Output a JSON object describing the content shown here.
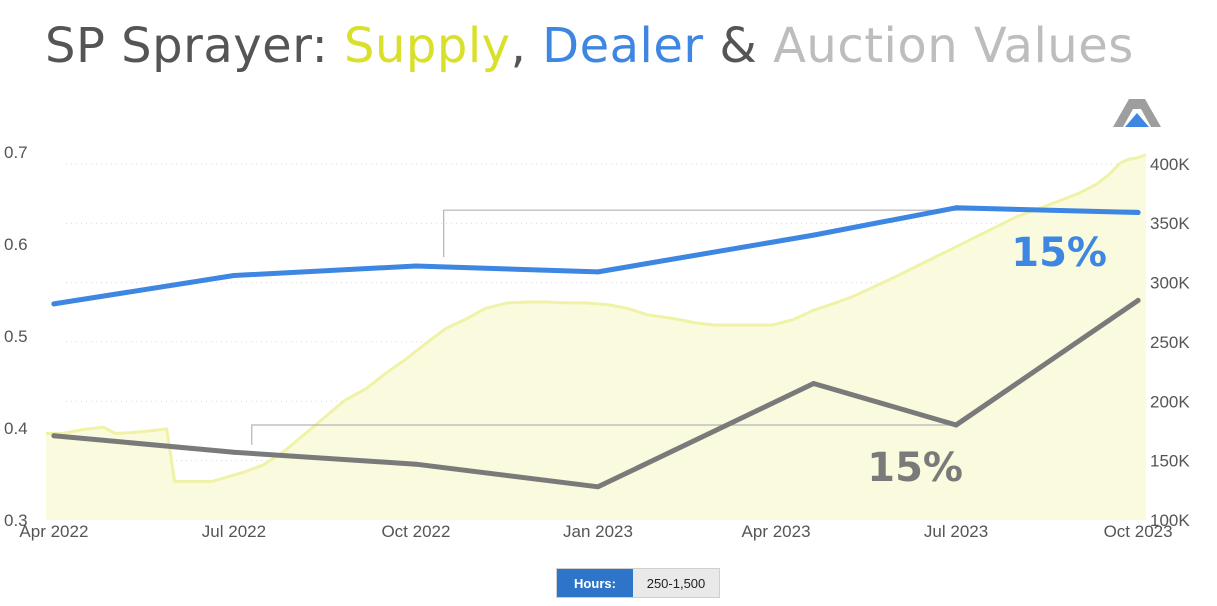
{
  "title": {
    "prefix": "SP Sprayer: ",
    "supply": "Supply",
    "sep1": ", ",
    "dealer": "Dealer",
    "sep2": " & ",
    "auction": "Auction Values"
  },
  "colors": {
    "title_text": "#555555",
    "supply": "#d9e02a",
    "supply_fill": "#fafade",
    "supply_line": "#f0f2a8",
    "dealer": "#3d86e2",
    "auction": "#7a7a7a",
    "auction_title": "#bdbdbd",
    "bracket": "#b4b4b4",
    "grid": "#d9d9d9"
  },
  "filter": {
    "label": "Hours:",
    "value": "250-1,500"
  },
  "logo": {
    "icon": "mountain-logo-icon"
  },
  "chart_data": {
    "type": "line",
    "x_type": "date",
    "xlim": [
      "2022-03-28",
      "2023-10-05"
    ],
    "x_ticks": [
      {
        "date": "2022-04-01",
        "label": "Apr 2022"
      },
      {
        "date": "2022-07-01",
        "label": "Jul 2022"
      },
      {
        "date": "2022-10-01",
        "label": "Oct 2022"
      },
      {
        "date": "2023-01-01",
        "label": "Jan 2023"
      },
      {
        "date": "2023-04-01",
        "label": "Apr 2023"
      },
      {
        "date": "2023-07-01",
        "label": "Jul 2023"
      },
      {
        "date": "2023-10-01",
        "label": "Oct 2023"
      }
    ],
    "y_left": {
      "ylim": [
        0.3,
        0.7
      ],
      "ticks": [
        0.3,
        0.4,
        0.5,
        0.6,
        0.7
      ],
      "labels": [
        "0.3",
        "0.4",
        "0.5",
        "0.6",
        "0.7"
      ]
    },
    "y_right": {
      "ylim": [
        100000,
        410000
      ],
      "ticks": [
        100000,
        150000,
        200000,
        250000,
        300000,
        350000,
        400000
      ],
      "labels": [
        "100K",
        "150K",
        "200K",
        "250K",
        "300K",
        "350K",
        "400K"
      ]
    },
    "grid": "dotted horizontal",
    "series": [
      {
        "key": "supply",
        "axis": "left",
        "style": "area",
        "x": [
          "2022-03-28",
          "2022-04-05",
          "2022-04-15",
          "2022-04-26",
          "2022-05-02",
          "2022-05-10",
          "2022-05-20",
          "2022-05-28",
          "2022-06-01",
          "2022-06-07",
          "2022-06-20",
          "2022-06-28",
          "2022-07-06",
          "2022-07-16",
          "2022-07-26",
          "2022-08-05",
          "2022-08-16",
          "2022-08-26",
          "2022-09-06",
          "2022-09-16",
          "2022-09-26",
          "2022-10-06",
          "2022-10-16",
          "2022-10-26",
          "2022-11-05",
          "2022-11-16",
          "2022-11-26",
          "2022-12-06",
          "2022-12-16",
          "2022-12-26",
          "2023-01-06",
          "2023-01-16",
          "2023-01-26",
          "2023-02-08",
          "2023-02-20",
          "2023-03-01",
          "2023-03-15",
          "2023-03-30",
          "2023-04-10",
          "2023-04-20",
          "2023-05-01",
          "2023-05-10",
          "2023-05-20",
          "2023-06-01",
          "2023-06-15",
          "2023-07-01",
          "2023-07-15",
          "2023-08-01",
          "2023-08-15",
          "2023-09-01",
          "2023-09-10",
          "2023-09-16",
          "2023-09-22",
          "2023-09-26",
          "2023-10-01",
          "2023-10-05"
        ],
        "values": [
          0.394,
          0.394,
          0.398,
          0.401,
          0.394,
          0.395,
          0.397,
          0.399,
          0.342,
          0.342,
          0.342,
          0.347,
          0.352,
          0.36,
          0.374,
          0.392,
          0.412,
          0.43,
          0.443,
          0.46,
          0.475,
          0.492,
          0.508,
          0.518,
          0.53,
          0.536,
          0.537,
          0.537,
          0.536,
          0.536,
          0.534,
          0.53,
          0.523,
          0.519,
          0.514,
          0.512,
          0.512,
          0.512,
          0.518,
          0.528,
          0.536,
          0.543,
          0.553,
          0.565,
          0.58,
          0.597,
          0.612,
          0.63,
          0.641,
          0.655,
          0.665,
          0.675,
          0.688,
          0.692,
          0.694,
          0.697
        ]
      },
      {
        "key": "dealer",
        "axis": "right",
        "x": [
          "2022-04-01",
          "2022-07-01",
          "2022-10-01",
          "2023-01-01",
          "2023-04-20",
          "2023-07-01",
          "2023-10-01"
        ],
        "values": [
          282000,
          306000,
          314000,
          309000,
          340000,
          363000,
          359000
        ]
      },
      {
        "key": "auction",
        "axis": "right",
        "x": [
          "2022-04-01",
          "2022-07-01",
          "2022-10-01",
          "2023-01-01",
          "2023-04-20",
          "2023-07-01",
          "2023-10-01"
        ],
        "values": [
          171000,
          157000,
          147000,
          128000,
          215000,
          180000,
          285000
        ]
      }
    ],
    "annotations": [
      {
        "key": "dealer",
        "text": "15%",
        "from": "2022-10-15",
        "to": "2023-10-01",
        "from_value": 313000,
        "level": 361000,
        "to_value": 361000
      },
      {
        "key": "auction",
        "text": "15%",
        "from": "2022-07-10",
        "to": "2023-07-01",
        "from_value": 155000,
        "level": 180000,
        "to_value": 180000
      }
    ]
  }
}
